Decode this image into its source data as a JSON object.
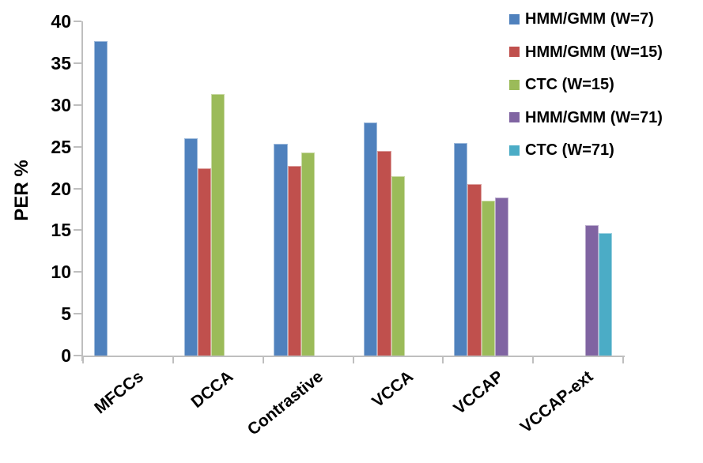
{
  "chart_data": {
    "type": "bar",
    "title": "",
    "xlabel": "",
    "ylabel": "PER %",
    "ylim": [
      0,
      40
    ],
    "ytick_step": 5,
    "yticks": [
      0,
      5,
      10,
      15,
      20,
      25,
      30,
      35,
      40
    ],
    "grid": false,
    "legend_position": "top-right",
    "background": "#FFFFFF",
    "axis_color": "#BFBFBF",
    "text_color": "#000000",
    "categories": [
      "MFCCs",
      "DCCA",
      "Contrastive",
      "VCCA",
      "VCCAP",
      "VCCAP-ext"
    ],
    "series": [
      {
        "name": "HMM/GMM (W=7)",
        "color": "#4F81BD",
        "values": [
          37.6,
          26.0,
          25.3,
          27.9,
          25.4,
          null
        ]
      },
      {
        "name": "HMM/GMM (W=15)",
        "color": "#C0504D",
        "values": [
          null,
          22.4,
          22.7,
          24.5,
          20.5,
          null
        ]
      },
      {
        "name": "CTC (W=15)",
        "color": "#9BBB59",
        "values": [
          null,
          31.3,
          24.3,
          21.5,
          18.5,
          null
        ]
      },
      {
        "name": "HMM/GMM (W=71)",
        "color": "#8064A2",
        "values": [
          null,
          null,
          null,
          null,
          18.9,
          15.6
        ]
      },
      {
        "name": "CTC (W=71)",
        "color": "#4BACC6",
        "values": [
          null,
          null,
          null,
          null,
          null,
          14.7
        ]
      }
    ]
  }
}
